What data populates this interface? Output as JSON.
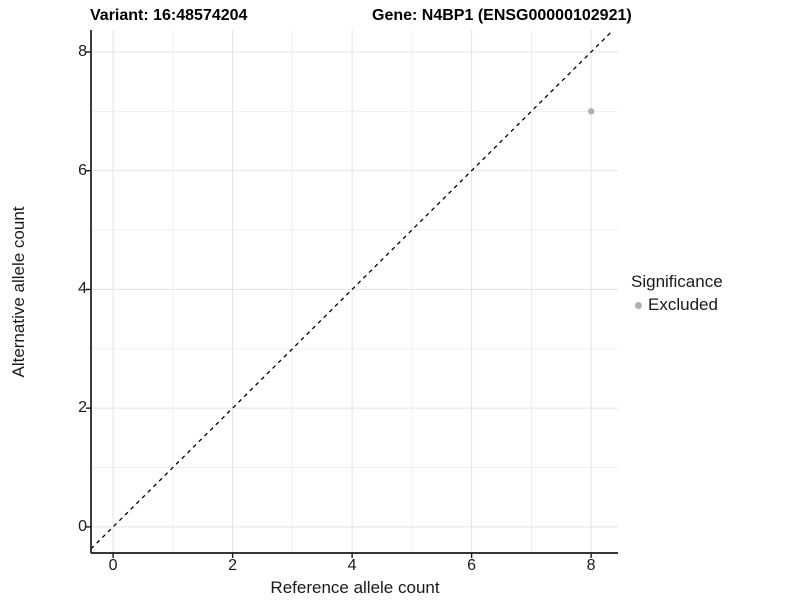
{
  "titles": {
    "variant": "Variant: 16:48574204",
    "gene": "Gene: N4BP1 (ENSG00000102921)"
  },
  "axes": {
    "x_label": "Reference allele count",
    "y_label": "Alternative allele count"
  },
  "legend": {
    "title": "Significance",
    "items": [
      {
        "label": "Excluded",
        "color": "#b0b0b0"
      }
    ]
  },
  "chart_data": {
    "type": "scatter",
    "title": "Variant: 16:48574204",
    "subtitle": "Gene: N4BP1 (ENSG00000102921)",
    "xlabel": "Reference allele count",
    "ylabel": "Alternative allele count",
    "xlim": [
      -0.37,
      8.45
    ],
    "ylim": [
      -0.44,
      8.37
    ],
    "x_ticks": [
      0,
      2,
      4,
      6,
      8
    ],
    "y_ticks": [
      0,
      2,
      4,
      6,
      8
    ],
    "x_minor_ticks": [
      1,
      3,
      5,
      7
    ],
    "y_minor_ticks": [
      1,
      3,
      5,
      7
    ],
    "grid": true,
    "legend_position": "right",
    "series": [
      {
        "name": "Excluded",
        "color": "#b0b0b0",
        "points": [
          {
            "x": 8,
            "y": 7
          }
        ]
      }
    ],
    "reference_line": {
      "type": "identity y=x",
      "style": "dashed",
      "color": "#000000"
    }
  },
  "colors": {
    "background": "#ffffff",
    "grid_major": "#e3e3e3",
    "grid_minor": "#efefef",
    "axis": "#1a1a1a",
    "point": "#b0b0b0"
  }
}
